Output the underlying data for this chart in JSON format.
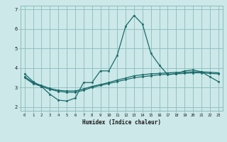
{
  "background_color": "#cce8e8",
  "grid_color": "#8bbcbc",
  "line_color": "#1a6b6b",
  "x_min": -0.5,
  "x_max": 23.5,
  "y_min": 1.8,
  "y_max": 7.2,
  "xlabel": "Humidex (Indice chaleur)",
  "x_ticks": [
    0,
    1,
    2,
    3,
    4,
    5,
    6,
    7,
    8,
    9,
    10,
    11,
    12,
    13,
    14,
    15,
    16,
    17,
    18,
    19,
    20,
    21,
    22,
    23
  ],
  "y_ticks": [
    2,
    3,
    4,
    5,
    6,
    7
  ],
  "curve1_x": [
    0,
    1,
    2,
    3,
    4,
    5,
    6,
    7,
    8,
    9,
    10,
    11,
    12,
    13,
    14,
    15,
    16,
    17,
    18,
    19,
    20,
    21,
    22,
    23
  ],
  "curve1_y": [
    3.7,
    3.3,
    3.05,
    2.65,
    2.35,
    2.3,
    2.45,
    3.25,
    3.25,
    3.85,
    3.85,
    4.65,
    6.15,
    6.7,
    6.25,
    4.75,
    4.15,
    3.65,
    3.7,
    3.85,
    3.9,
    3.8,
    3.55,
    3.3
  ],
  "curve2_x": [
    0,
    1,
    2,
    3,
    4,
    5,
    6,
    7,
    8,
    9,
    10,
    11,
    12,
    13,
    14,
    15,
    16,
    17,
    18,
    19,
    20,
    21,
    22,
    23
  ],
  "curve2_y": [
    3.55,
    3.25,
    3.1,
    2.95,
    2.85,
    2.82,
    2.82,
    2.92,
    3.05,
    3.15,
    3.25,
    3.38,
    3.48,
    3.6,
    3.65,
    3.7,
    3.72,
    3.75,
    3.77,
    3.78,
    3.8,
    3.8,
    3.78,
    3.75
  ],
  "curve3_x": [
    0,
    1,
    2,
    3,
    4,
    5,
    6,
    7,
    8,
    9,
    10,
    11,
    12,
    13,
    14,
    15,
    16,
    17,
    18,
    19,
    20,
    21,
    22,
    23
  ],
  "curve3_y": [
    3.5,
    3.2,
    3.05,
    2.9,
    2.8,
    2.75,
    2.75,
    2.85,
    3.0,
    3.1,
    3.2,
    3.3,
    3.4,
    3.5,
    3.55,
    3.6,
    3.65,
    3.68,
    3.7,
    3.72,
    3.75,
    3.75,
    3.72,
    3.7
  ]
}
